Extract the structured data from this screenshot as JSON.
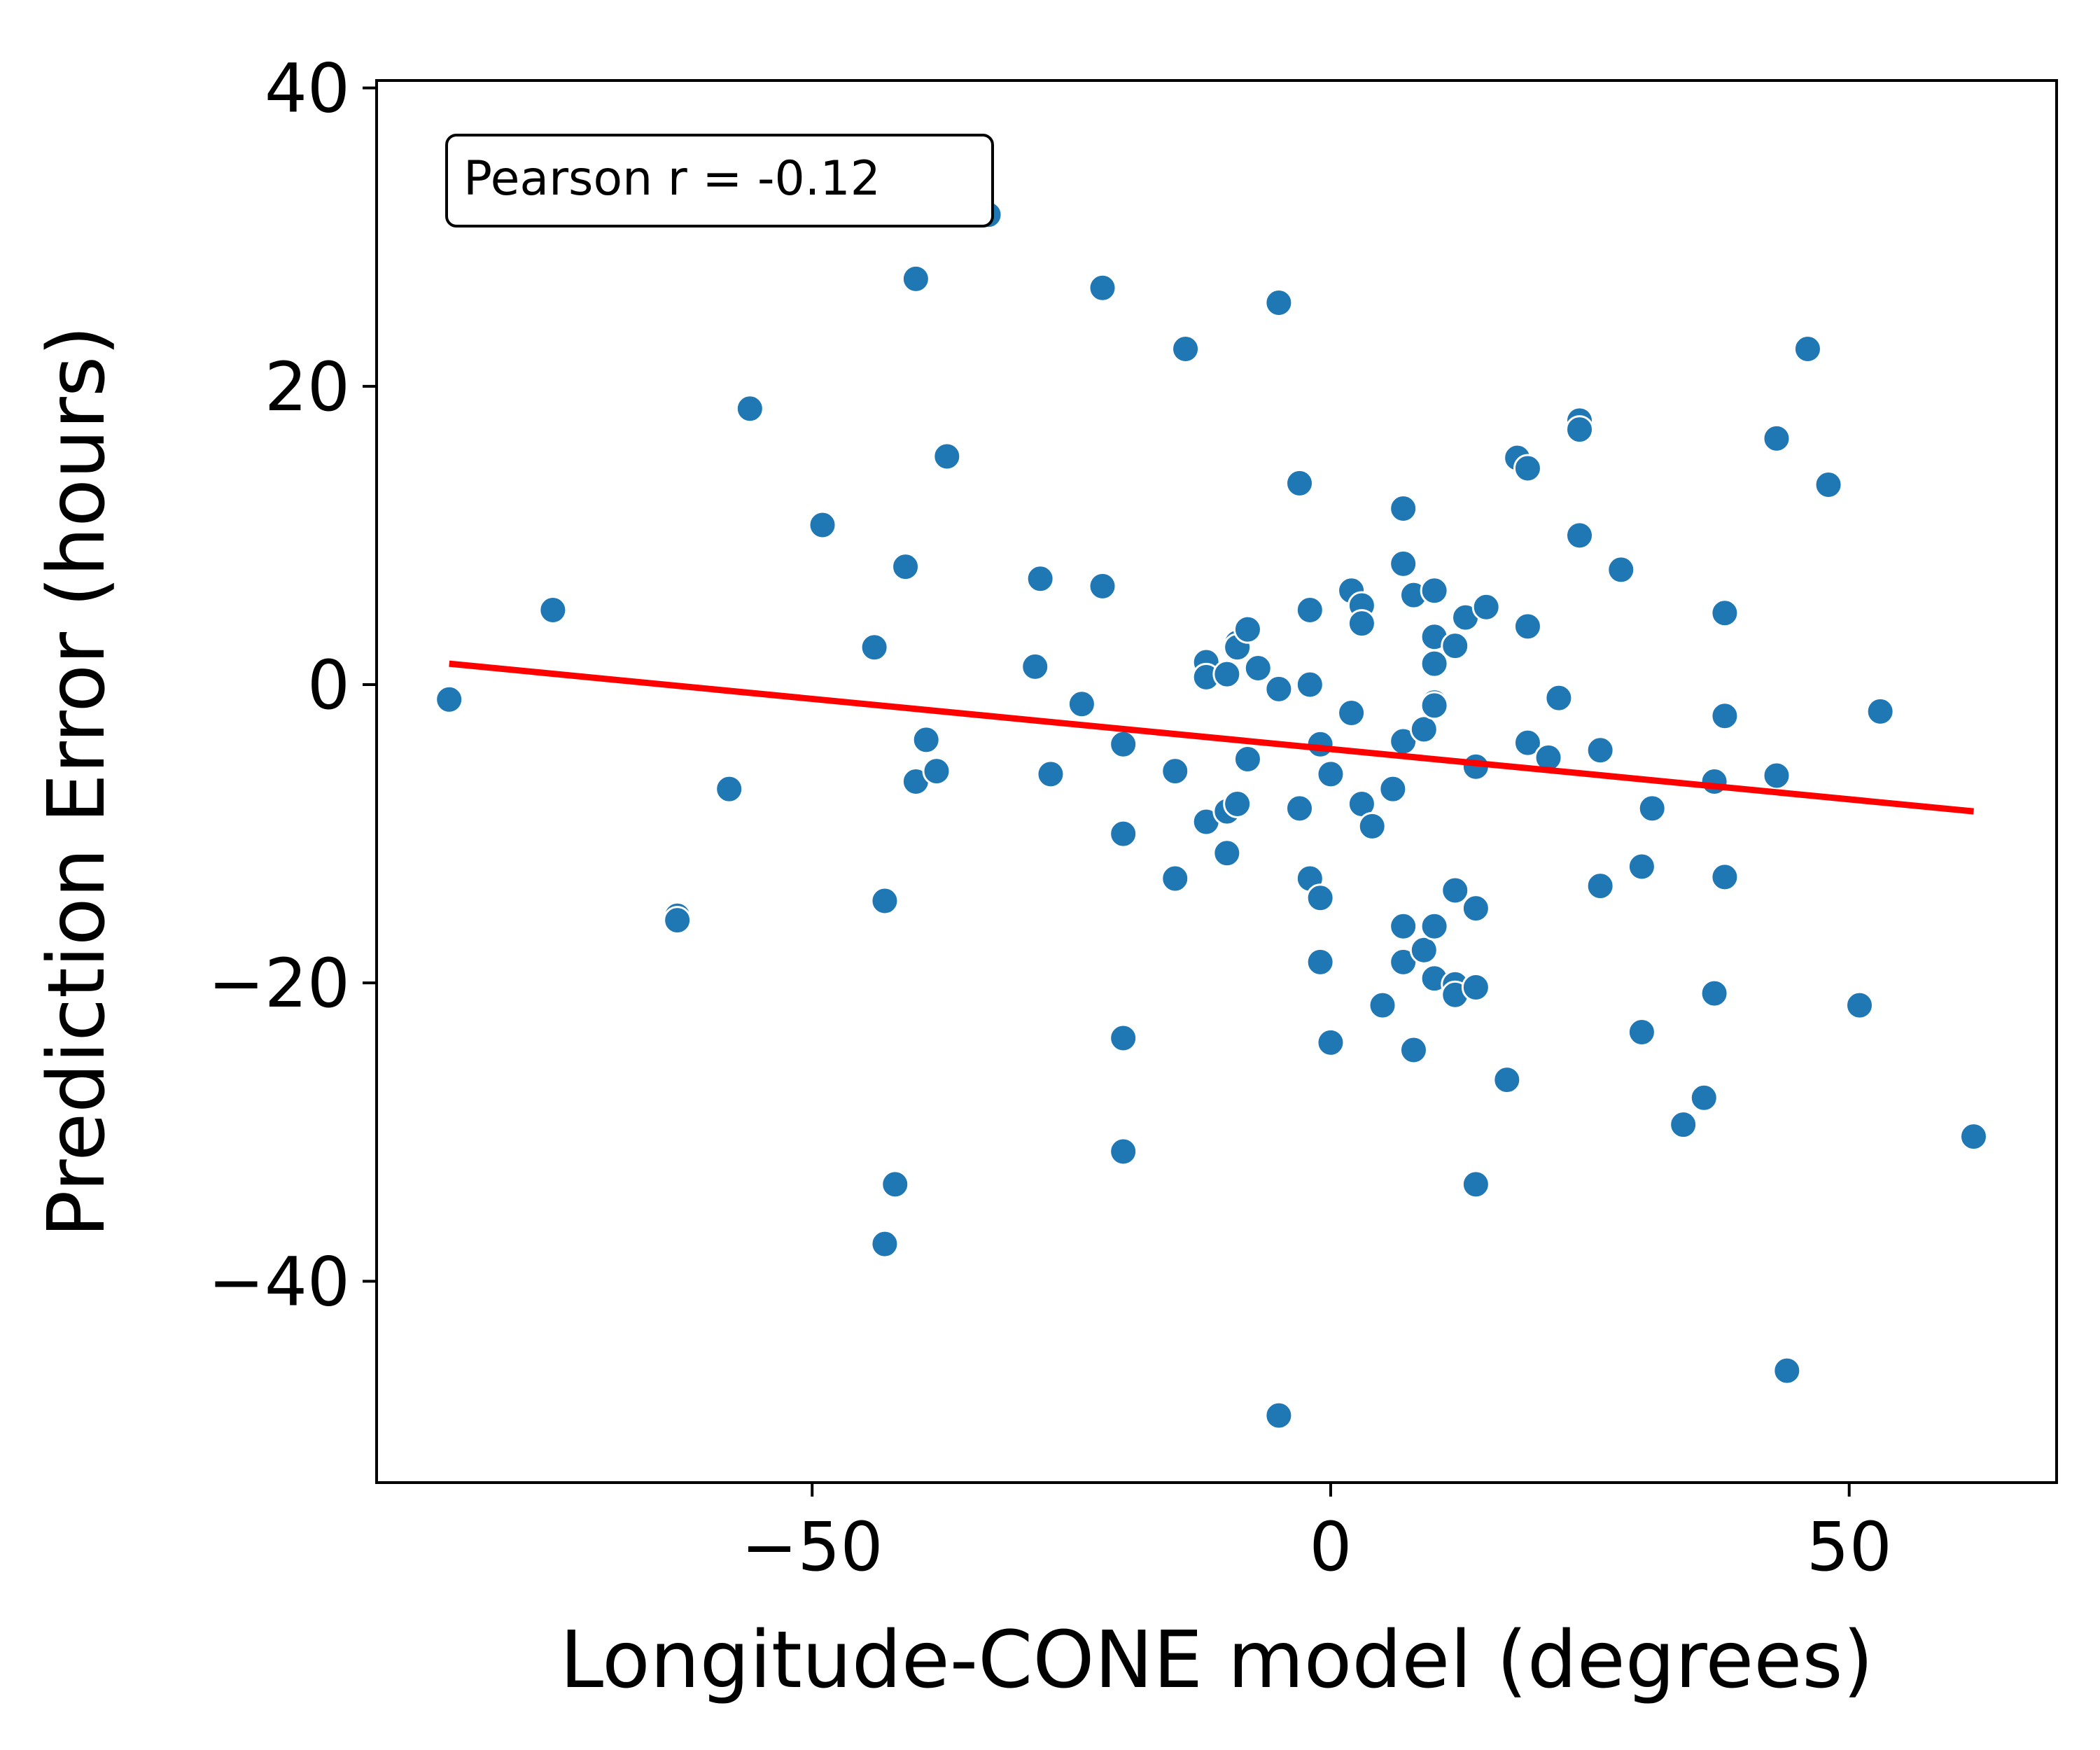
{
  "chart_data": {
    "type": "scatter",
    "xlabel": "Longitude-CONE model (degrees)",
    "ylabel": "Prediction Error (hours)",
    "xlim": [
      -92,
      70
    ],
    "ylim": [
      -53.5,
      40.5
    ],
    "x_ticks": [
      -50,
      0,
      50
    ],
    "y_ticks": [
      -40,
      -20,
      0,
      20,
      40
    ],
    "x_tick_labels": [
      "−50",
      "0",
      "50"
    ],
    "y_tick_labels": [
      "−40",
      "−20",
      "0",
      "20",
      "40"
    ],
    "grid": false,
    "annotation": "Pearson r = -0.12",
    "annotation_position": "top-left",
    "point_color": "#1f77b4",
    "trend_color": "#ff0000",
    "trend_line": {
      "x": [
        -85,
        62
      ],
      "y": [
        1.4,
        -8.5
      ]
    },
    "points": [
      [
        -85,
        -1
      ],
      [
        -75,
        5
      ],
      [
        -63,
        -15.5
      ],
      [
        -63,
        -15.8
      ],
      [
        -58,
        -7
      ],
      [
        -56,
        18.5
      ],
      [
        -49,
        10.7
      ],
      [
        -44,
        2.5
      ],
      [
        -43,
        -14.5
      ],
      [
        -43,
        -37.5
      ],
      [
        -42,
        -33.5
      ],
      [
        -41,
        7.9
      ],
      [
        -40,
        27.2
      ],
      [
        -40,
        -6.5
      ],
      [
        -39,
        -3.7
      ],
      [
        -38,
        -5.8
      ],
      [
        -37,
        15.3
      ],
      [
        -33,
        31.5
      ],
      [
        -28,
        7.1
      ],
      [
        -28.5,
        1.2
      ],
      [
        -27,
        -6
      ],
      [
        -24,
        -1.3
      ],
      [
        -22,
        26.6
      ],
      [
        -22,
        6.6
      ],
      [
        -20,
        -4
      ],
      [
        -20,
        -10
      ],
      [
        -20,
        -23.7
      ],
      [
        -20,
        -31.3
      ],
      [
        -15,
        -5.8
      ],
      [
        -15,
        -13
      ],
      [
        -14,
        22.5
      ],
      [
        -12,
        1.5
      ],
      [
        -12,
        0.5
      ],
      [
        -12,
        -9.2
      ],
      [
        -10,
        -11.3
      ],
      [
        -10,
        -8.5
      ],
      [
        -10,
        0.7
      ],
      [
        -9,
        2.8
      ],
      [
        -9,
        2.5
      ],
      [
        -9,
        -8
      ],
      [
        -8,
        3.7
      ],
      [
        -8,
        -5
      ],
      [
        -7,
        1.1
      ],
      [
        -5,
        25.6
      ],
      [
        -5,
        -0.3
      ],
      [
        -5,
        -49
      ],
      [
        -3,
        13.5
      ],
      [
        -3,
        -8.3
      ],
      [
        -2,
        5
      ],
      [
        -2,
        0
      ],
      [
        -2,
        -13
      ],
      [
        -1,
        -4
      ],
      [
        -1,
        -14.3
      ],
      [
        -1,
        -18.6
      ],
      [
        0,
        -6
      ],
      [
        0,
        -24
      ],
      [
        2,
        6.3
      ],
      [
        2,
        -1.9
      ],
      [
        3,
        5.3
      ],
      [
        3,
        4.1
      ],
      [
        3,
        -8
      ],
      [
        4,
        -9.5
      ],
      [
        5,
        -21.5
      ],
      [
        6,
        -7
      ],
      [
        7,
        11.8
      ],
      [
        7,
        8.1
      ],
      [
        7,
        -3.8
      ],
      [
        7,
        -16.2
      ],
      [
        7,
        -18.6
      ],
      [
        8,
        6
      ],
      [
        8,
        -24.5
      ],
      [
        9,
        -3
      ],
      [
        9,
        -17.8
      ],
      [
        10,
        6.3
      ],
      [
        10,
        3.2
      ],
      [
        10,
        1.4
      ],
      [
        10,
        -1.2
      ],
      [
        10,
        -1.4
      ],
      [
        10,
        -16.2
      ],
      [
        10,
        -19.7
      ],
      [
        12,
        2.6
      ],
      [
        12,
        -13.8
      ],
      [
        12,
        -20.1
      ],
      [
        12,
        -20.8
      ],
      [
        13,
        4.5
      ],
      [
        14,
        -5.5
      ],
      [
        14,
        -15
      ],
      [
        14,
        -20.3
      ],
      [
        14,
        -33.5
      ],
      [
        15,
        5.2
      ],
      [
        17,
        -26.5
      ],
      [
        18,
        15.2
      ],
      [
        19,
        14.5
      ],
      [
        19,
        3.9
      ],
      [
        19,
        -3.9
      ],
      [
        21,
        -4.9
      ],
      [
        22,
        -0.9
      ],
      [
        24,
        17.7
      ],
      [
        24,
        17.1
      ],
      [
        24,
        10
      ],
      [
        26,
        -4.4
      ],
      [
        26,
        -13.5
      ],
      [
        28,
        7.7
      ],
      [
        30,
        -12.2
      ],
      [
        30,
        -23.3
      ],
      [
        31,
        -8.3
      ],
      [
        34,
        -29.5
      ],
      [
        36,
        -27.7
      ],
      [
        37,
        -6.5
      ],
      [
        37,
        -20.7
      ],
      [
        38,
        4.8
      ],
      [
        38,
        -2.1
      ],
      [
        38,
        -12.9
      ],
      [
        43,
        16.5
      ],
      [
        43,
        -6.1
      ],
      [
        44,
        -46
      ],
      [
        46,
        22.5
      ],
      [
        48,
        13.4
      ],
      [
        51,
        -21.5
      ],
      [
        53,
        -1.8
      ],
      [
        62,
        -30.3
      ]
    ]
  }
}
